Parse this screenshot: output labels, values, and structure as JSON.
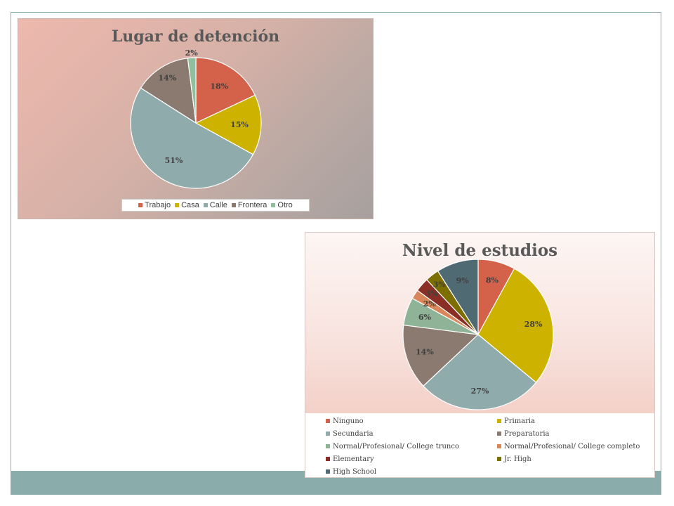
{
  "chart_data": [
    {
      "type": "pie",
      "title": "Lugar de detención",
      "categories": [
        "Trabajo",
        "Casa",
        "Calle",
        "Frontera",
        "Otro"
      ],
      "values": [
        18,
        15,
        51,
        14,
        2
      ],
      "data_labels": [
        "18%",
        "15%",
        "51%",
        "14%",
        "2%"
      ],
      "colors": [
        "#d4614a",
        "#cdb300",
        "#8fabab",
        "#8a7a70",
        "#8fbf9c"
      ],
      "legend_position": "bottom"
    },
    {
      "type": "pie",
      "title": "Nivel de estudios",
      "categories": [
        "Ninguno",
        "Primaria",
        "Secundaria",
        "Preparatoria",
        "Normal/Profesional/ College trunco",
        "Normal/Profesional/ College completo",
        "Elementary",
        "Jr. High",
        "High School"
      ],
      "values": [
        8,
        28,
        27,
        14,
        6,
        2,
        3,
        3,
        9
      ],
      "data_labels": [
        "8%",
        "28%",
        "27%",
        "14%",
        "6%",
        "2%",
        "3%",
        "3%",
        "9%"
      ],
      "colors": [
        "#d4614a",
        "#cdb300",
        "#8fabab",
        "#8a7a70",
        "#8fb396",
        "#d9875a",
        "#8b2f26",
        "#7d6e00",
        "#4f6a73"
      ],
      "legend_position": "bottom"
    }
  ]
}
